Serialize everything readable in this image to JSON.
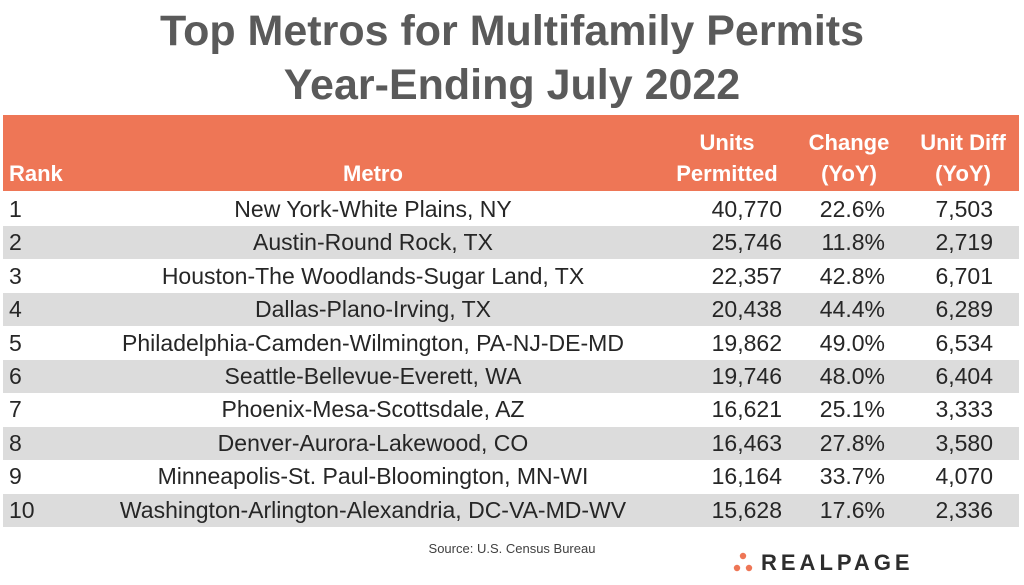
{
  "title_line1": "Top Metros for Multifamily Permits",
  "title_line2": "Year-Ending July 2022",
  "source": "Source: U.S. Census Bureau",
  "logo_text": "REALPAGE",
  "colors": {
    "header_bg": "#ee7656",
    "title": "#5a5a5a",
    "alt_row": "#dcdcdc",
    "logo_accent": "#ee7656"
  },
  "chart_data": {
    "type": "table",
    "title": "Top Metros for Multifamily Permits Year-Ending July 2022",
    "columns": [
      {
        "key": "rank",
        "line1": "",
        "line2": "Rank"
      },
      {
        "key": "metro",
        "line1": "",
        "line2": "Metro"
      },
      {
        "key": "units",
        "line1": "Units",
        "line2": "Permitted"
      },
      {
        "key": "change",
        "line1": "Change",
        "line2": "(YoY)"
      },
      {
        "key": "diff",
        "line1": "Unit Diff",
        "line2": "(YoY)"
      }
    ],
    "rows": [
      {
        "rank": "1",
        "metro": "New York-White Plains, NY",
        "units": "40,770",
        "change": "22.6%",
        "diff": "7,503"
      },
      {
        "rank": "2",
        "metro": "Austin-Round Rock, TX",
        "units": "25,746",
        "change": "11.8%",
        "diff": "2,719"
      },
      {
        "rank": "3",
        "metro": "Houston-The Woodlands-Sugar Land, TX",
        "units": "22,357",
        "change": "42.8%",
        "diff": "6,701"
      },
      {
        "rank": "4",
        "metro": "Dallas-Plano-Irving, TX",
        "units": "20,438",
        "change": "44.4%",
        "diff": "6,289"
      },
      {
        "rank": "5",
        "metro": "Philadelphia-Camden-Wilmington, PA-NJ-DE-MD",
        "units": "19,862",
        "change": "49.0%",
        "diff": "6,534"
      },
      {
        "rank": "6",
        "metro": "Seattle-Bellevue-Everett, WA",
        "units": "19,746",
        "change": "48.0%",
        "diff": "6,404"
      },
      {
        "rank": "7",
        "metro": "Phoenix-Mesa-Scottsdale, AZ",
        "units": "16,621",
        "change": "25.1%",
        "diff": "3,333"
      },
      {
        "rank": "8",
        "metro": "Denver-Aurora-Lakewood, CO",
        "units": "16,463",
        "change": "27.8%",
        "diff": "3,580"
      },
      {
        "rank": "9",
        "metro": "Minneapolis-St. Paul-Bloomington, MN-WI",
        "units": "16,164",
        "change": "33.7%",
        "diff": "4,070"
      },
      {
        "rank": "10",
        "metro": "Washington-Arlington-Alexandria, DC-VA-MD-WV",
        "units": "15,628",
        "change": "17.6%",
        "diff": "2,336"
      }
    ]
  }
}
